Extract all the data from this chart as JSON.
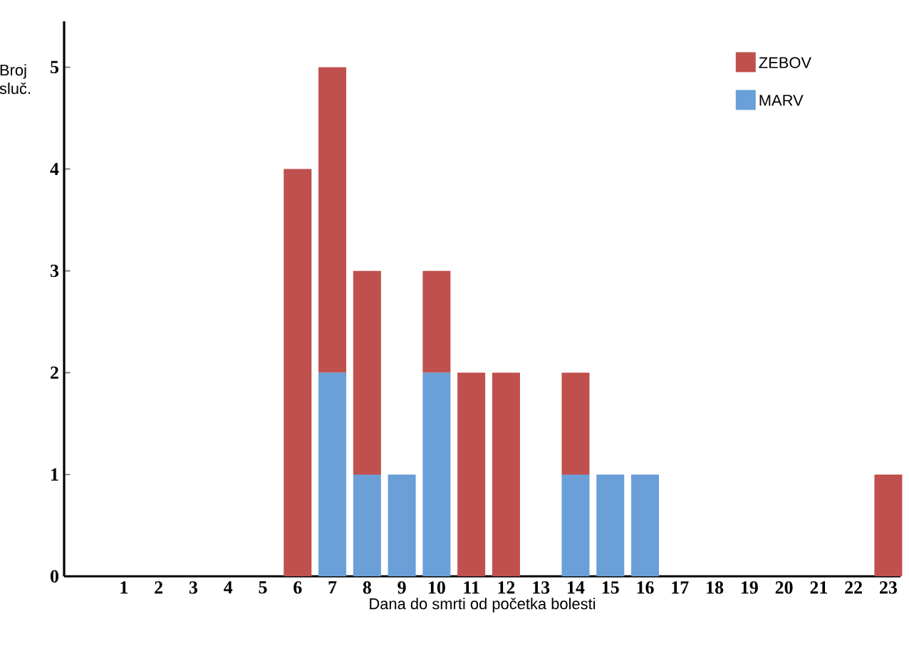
{
  "chart_data": {
    "type": "bar",
    "stacked": true,
    "xlabel": "Dana do smrti od početka bolesti",
    "ylabel": "Broj sluč.",
    "categories": [
      "1",
      "2",
      "3",
      "4",
      "5",
      "6",
      "7",
      "8",
      "9",
      "10",
      "11",
      "12",
      "13",
      "14",
      "15",
      "16",
      "17",
      "18",
      "19",
      "20",
      "21",
      "22",
      "23"
    ],
    "series": [
      {
        "name": "MARV",
        "color": "#6a9fd8",
        "values": [
          0,
          0,
          0,
          0,
          0,
          0,
          2,
          1,
          1,
          2,
          0,
          0,
          0,
          1,
          1,
          1,
          0,
          0,
          0,
          0,
          0,
          0,
          0
        ]
      },
      {
        "name": "ZEBOV",
        "color": "#c0504d",
        "values": [
          0,
          0,
          0,
          0,
          0,
          4,
          3,
          2,
          0,
          1,
          2,
          2,
          0,
          1,
          0,
          0,
          0,
          0,
          0,
          0,
          0,
          0,
          1
        ]
      }
    ],
    "ylim": [
      0,
      5.45
    ],
    "yticks": [
      0,
      1,
      2,
      3,
      4,
      5
    ],
    "legend": "top right"
  }
}
